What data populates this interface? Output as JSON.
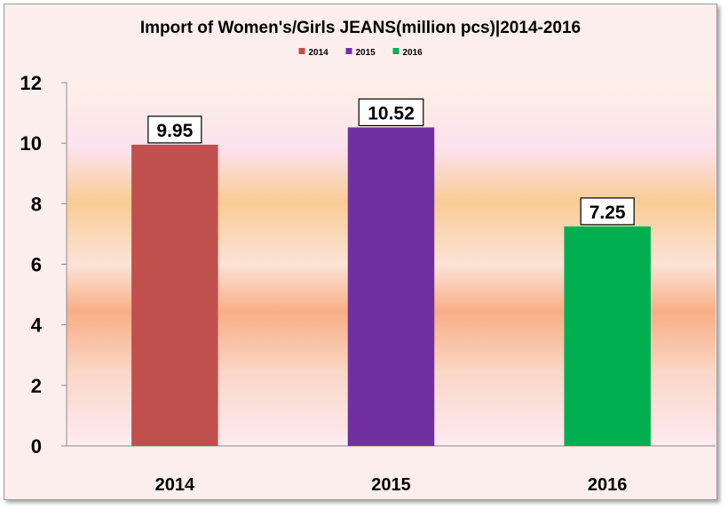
{
  "chart_data": {
    "type": "bar",
    "title": "Import of Women's/Girls JEANS(million pcs)|2014-2016",
    "categories": [
      "2014",
      "2015",
      "2016"
    ],
    "series": [
      {
        "name": "2014",
        "values": [
          9.95,
          null,
          null
        ],
        "color": "#c0504d"
      },
      {
        "name": "2015",
        "values": [
          null,
          10.52,
          null
        ],
        "color": "#7030a0"
      },
      {
        "name": "2016",
        "values": [
          null,
          null,
          7.25
        ],
        "color": "#00b050"
      }
    ],
    "data_labels": [
      "9.95",
      "10.52",
      "7.25"
    ],
    "yticks": [
      "0",
      "2",
      "4",
      "6",
      "8",
      "10",
      "12"
    ],
    "ylim": [
      0,
      12
    ],
    "xlabel": "",
    "ylabel": "",
    "grid": false,
    "legend_position": "top-center"
  }
}
